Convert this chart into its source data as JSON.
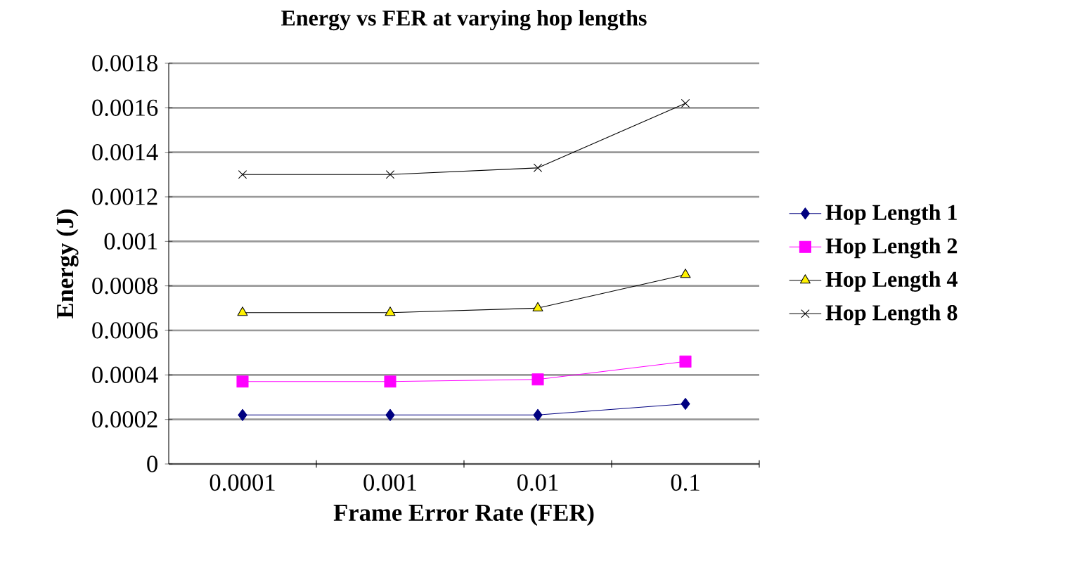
{
  "chart_data": {
    "type": "line",
    "title": "Energy vs FER at varying hop lengths",
    "xlabel": "Frame Error Rate (FER)",
    "ylabel": "Energy (J)",
    "categories": [
      "0.0001",
      "0.001",
      "0.01",
      "0.1"
    ],
    "series": [
      {
        "name": "Hop Length  1",
        "color": "#000080",
        "marker": "diamond",
        "values": [
          0.00022,
          0.00022,
          0.00022,
          0.00027
        ]
      },
      {
        "name": "Hop Length  2",
        "color": "#ff00ff",
        "marker": "square",
        "values": [
          0.00037,
          0.00037,
          0.00038,
          0.00046
        ]
      },
      {
        "name": "Hop Length  4",
        "color": "#000000",
        "marker": "triangle",
        "values": [
          0.00068,
          0.00068,
          0.0007,
          0.00085
        ]
      },
      {
        "name": "Hop Length  8",
        "color": "#000000",
        "marker": "cross",
        "values": [
          0.0013,
          0.0013,
          0.00133,
          0.00162
        ]
      }
    ],
    "ylim": [
      0,
      0.0018
    ],
    "yticks": [
      0,
      0.0002,
      0.0004,
      0.0006,
      0.0008,
      0.001,
      0.0012,
      0.0014,
      0.0016,
      0.0018
    ],
    "grid": "y",
    "legend": "right",
    "line_style": "solid"
  }
}
